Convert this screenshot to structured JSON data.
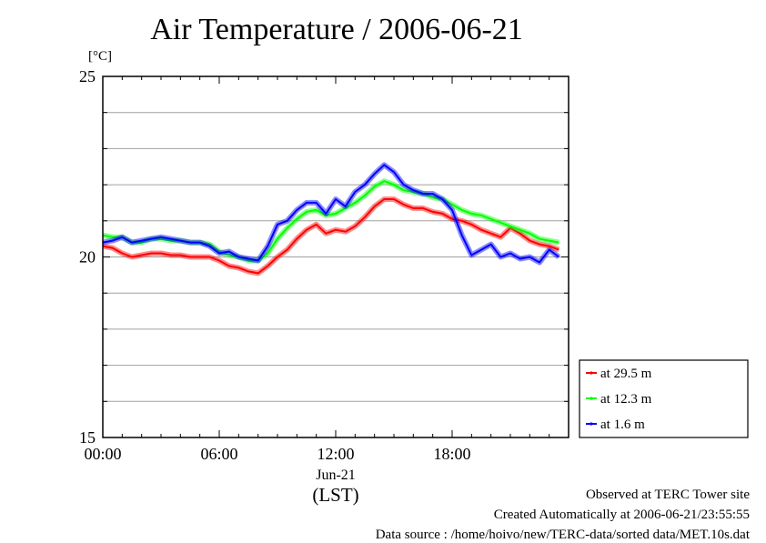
{
  "page": {
    "title": "Air Temperature / 2006-06-21",
    "unit": "[°C]",
    "footer": {
      "observed": "Observed at TERC Tower site",
      "created": "Created Automatically at 2006-06-21/23:55:55",
      "source": "Data source : /home/hoivo/new/TERC-data/sorted  data/MET.10s.dat"
    }
  },
  "chart_data": {
    "type": "line",
    "title": "Air Temperature / 2006-06-21",
    "ylabel": "[°C]",
    "xlabel": "",
    "ylim": [
      15,
      25
    ],
    "xlim": [
      0,
      24
    ],
    "yticks": [
      15,
      20,
      25
    ],
    "grid": true,
    "x_tick_labels": [
      "00:00",
      "06:00",
      "12:00",
      "18:00"
    ],
    "x_tick_values": [
      0,
      6,
      12,
      18
    ],
    "x_date_label": "Jun-21",
    "x_unit_label": "(LST)",
    "legend_position": "bottom-right outside",
    "x": [
      0.0,
      0.5,
      1.0,
      1.5,
      2.0,
      2.5,
      3.0,
      3.5,
      4.0,
      4.5,
      5.0,
      5.5,
      6.0,
      6.5,
      7.0,
      7.5,
      8.0,
      8.5,
      9.0,
      9.5,
      10.0,
      10.5,
      11.0,
      11.5,
      12.0,
      12.5,
      13.0,
      13.5,
      14.0,
      14.5,
      15.0,
      15.5,
      16.0,
      16.5,
      17.0,
      17.5,
      18.0,
      18.5,
      19.0,
      19.5,
      20.0,
      20.5,
      21.0,
      21.5,
      22.0,
      22.5,
      23.0,
      23.5
    ],
    "series": [
      {
        "name": "at 29.5 m",
        "color": "#ff0000",
        "values": [
          20.3,
          20.25,
          20.1,
          20.0,
          20.05,
          20.1,
          20.1,
          20.05,
          20.05,
          20.0,
          20.0,
          20.0,
          19.9,
          19.75,
          19.7,
          19.6,
          19.55,
          19.75,
          20.0,
          20.2,
          20.5,
          20.75,
          20.9,
          20.65,
          20.75,
          20.7,
          20.85,
          21.1,
          21.4,
          21.6,
          21.6,
          21.45,
          21.35,
          21.35,
          21.25,
          21.2,
          21.05,
          21.0,
          20.9,
          20.75,
          20.65,
          20.55,
          20.8,
          20.65,
          20.45,
          20.35,
          20.3,
          20.2
        ]
      },
      {
        "name": "at 12.3 m",
        "color": "#00ff00",
        "values": [
          20.6,
          20.55,
          20.55,
          20.4,
          20.4,
          20.5,
          20.5,
          20.45,
          20.45,
          20.4,
          20.4,
          20.35,
          20.15,
          20.05,
          20.0,
          19.9,
          19.9,
          20.1,
          20.5,
          20.8,
          21.05,
          21.25,
          21.3,
          21.15,
          21.2,
          21.35,
          21.5,
          21.7,
          21.95,
          22.1,
          22.0,
          21.85,
          21.8,
          21.75,
          21.65,
          21.6,
          21.45,
          21.3,
          21.2,
          21.15,
          21.05,
          20.95,
          20.85,
          20.75,
          20.65,
          20.5,
          20.45,
          20.4
        ]
      },
      {
        "name": "at 1.6 m",
        "color": "#0000ff",
        "values": [
          20.4,
          20.45,
          20.55,
          20.4,
          20.45,
          20.5,
          20.55,
          20.5,
          20.45,
          20.4,
          20.4,
          20.3,
          20.1,
          20.15,
          20.0,
          19.95,
          19.9,
          20.3,
          20.9,
          21.0,
          21.3,
          21.5,
          21.5,
          21.2,
          21.6,
          21.4,
          21.8,
          22.0,
          22.3,
          22.55,
          22.35,
          22.0,
          21.85,
          21.75,
          21.75,
          21.6,
          21.3,
          20.6,
          20.05,
          20.2,
          20.35,
          20.0,
          20.1,
          19.95,
          20.0,
          19.85,
          20.2,
          20.0
        ]
      }
    ]
  }
}
